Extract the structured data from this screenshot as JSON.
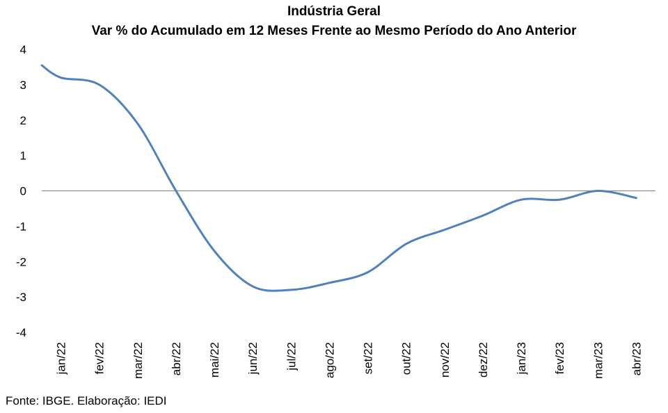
{
  "chart_data": {
    "type": "line",
    "title": "Indústria Geral",
    "subtitle": "Var % do Acumulado em 12 Meses Frente ao Mesmo Período do Ano Anterior",
    "categories": [
      "jan/22",
      "fev/22",
      "mar/22",
      "abr/22",
      "mai/22",
      "jun/22",
      "jul/22",
      "ago/22",
      "set/22",
      "out/22",
      "nov/22",
      "dez/22",
      "jan/23",
      "fev/23",
      "mar/23",
      "abr/23"
    ],
    "series": [
      {
        "values": [
          3.2,
          3.0,
          1.9,
          0.0,
          -1.7,
          -2.7,
          -2.8,
          -2.6,
          -2.3,
          -1.5,
          -1.1,
          -0.7,
          -0.25,
          -0.25,
          0.0,
          -0.2
        ]
      }
    ],
    "series_start": 3.55,
    "ylim": [
      -4,
      4
    ],
    "yticks": [
      4,
      3,
      2,
      1,
      0,
      -1,
      -2,
      -3,
      -4
    ],
    "grid": false,
    "legend": "none",
    "line_color": "#4F81BD",
    "zero_line_color": "#808080"
  },
  "source": "Fonte: IBGE. Elaboração: IEDI"
}
